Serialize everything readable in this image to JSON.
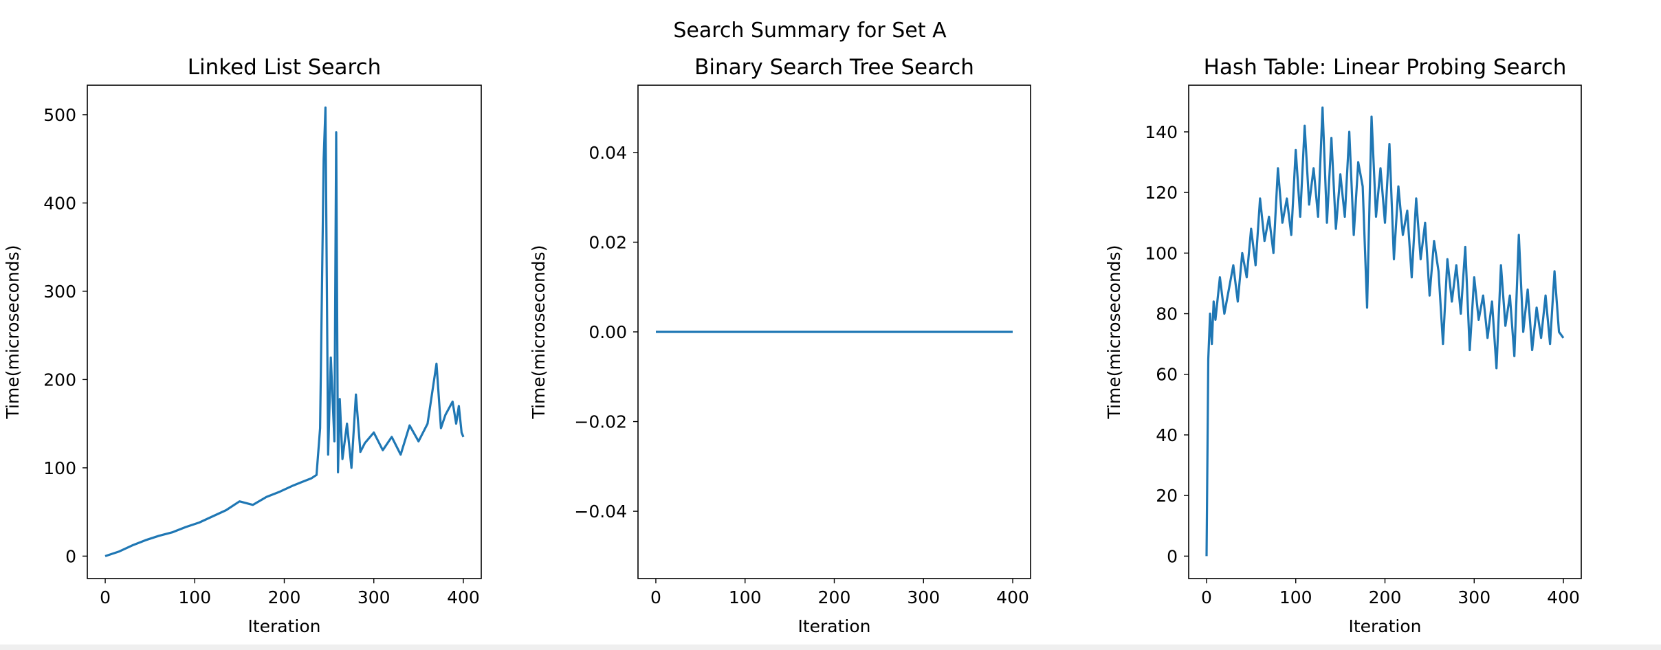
{
  "suptitle": "Search Summary for Set A",
  "series_color": "#1f77b4",
  "chart_data": [
    {
      "type": "line",
      "title": "Linked List Search",
      "xlabel": "Iteration",
      "ylabel": "Time(microseconds)",
      "xlim": [
        -20,
        420
      ],
      "ylim": [
        -25.4,
        533.4
      ],
      "xticks": [
        0,
        100,
        200,
        300,
        400
      ],
      "yticks": [
        0,
        100,
        200,
        300,
        400,
        500
      ],
      "ytick_labels": [
        "0",
        "100",
        "200",
        "300",
        "400",
        "500"
      ],
      "x": [
        0,
        15,
        30,
        45,
        60,
        75,
        90,
        105,
        120,
        135,
        150,
        165,
        180,
        195,
        210,
        220,
        230,
        236,
        240,
        244,
        246,
        249,
        252,
        256,
        258,
        260,
        262,
        265,
        270,
        275,
        280,
        285,
        290,
        300,
        310,
        320,
        330,
        340,
        350,
        360,
        370,
        375,
        380,
        388,
        392,
        395,
        398,
        400
      ],
      "y": [
        0,
        5,
        12,
        18,
        23,
        27,
        33,
        38,
        45,
        52,
        62,
        58,
        67,
        73,
        80,
        84,
        88,
        92,
        145,
        450,
        508,
        115,
        225,
        130,
        480,
        95,
        178,
        110,
        150,
        100,
        183,
        118,
        128,
        140,
        120,
        135,
        115,
        148,
        130,
        150,
        218,
        145,
        160,
        175,
        150,
        170,
        140,
        135
      ]
    },
    {
      "type": "line",
      "title": "Binary Search Tree Search",
      "xlabel": "Iteration",
      "ylabel": "Time(microseconds)",
      "xlim": [
        -20,
        420
      ],
      "ylim": [
        -0.055,
        0.055
      ],
      "xticks": [
        0,
        100,
        200,
        300,
        400
      ],
      "yticks": [
        -0.04,
        -0.02,
        0.0,
        0.02,
        0.04
      ],
      "ytick_labels": [
        "−0.04",
        "−0.02",
        "0.00",
        "0.02",
        "0.04"
      ],
      "x": [
        0,
        400
      ],
      "y": [
        0,
        0
      ]
    },
    {
      "type": "line",
      "title": "Hash Table: Linear Probing Search",
      "xlabel": "Iteration",
      "ylabel": "Time(microseconds)",
      "xlim": [
        -20,
        420
      ],
      "ylim": [
        -7.4,
        155.4
      ],
      "xticks": [
        0,
        100,
        200,
        300,
        400
      ],
      "yticks": [
        0,
        20,
        40,
        60,
        80,
        100,
        120,
        140
      ],
      "ytick_labels": [
        "0",
        "20",
        "40",
        "60",
        "80",
        "100",
        "120",
        "140"
      ],
      "x": [
        0,
        2,
        4,
        6,
        8,
        10,
        15,
        20,
        25,
        30,
        35,
        40,
        45,
        50,
        55,
        60,
        65,
        70,
        75,
        80,
        85,
        90,
        95,
        100,
        105,
        110,
        115,
        120,
        125,
        130,
        135,
        140,
        145,
        150,
        155,
        160,
        165,
        170,
        175,
        180,
        185,
        190,
        195,
        200,
        205,
        210,
        215,
        220,
        225,
        230,
        235,
        240,
        245,
        250,
        255,
        260,
        265,
        270,
        275,
        280,
        285,
        290,
        295,
        300,
        305,
        310,
        315,
        320,
        325,
        330,
        335,
        340,
        345,
        350,
        355,
        360,
        365,
        370,
        375,
        380,
        385,
        390,
        395,
        400
      ],
      "y": [
        0,
        65,
        80,
        70,
        84,
        78,
        92,
        80,
        88,
        96,
        84,
        100,
        92,
        108,
        96,
        118,
        104,
        112,
        100,
        128,
        110,
        118,
        106,
        134,
        112,
        142,
        116,
        128,
        112,
        148,
        110,
        138,
        108,
        126,
        112,
        140,
        106,
        130,
        122,
        82,
        145,
        112,
        128,
        110,
        136,
        98,
        122,
        106,
        114,
        92,
        118,
        98,
        110,
        86,
        104,
        94,
        70,
        98,
        84,
        96,
        80,
        102,
        68,
        92,
        78,
        86,
        72,
        84,
        62,
        96,
        76,
        86,
        66,
        106,
        74,
        88,
        68,
        82,
        72,
        86,
        70,
        94,
        74,
        72
      ]
    }
  ]
}
